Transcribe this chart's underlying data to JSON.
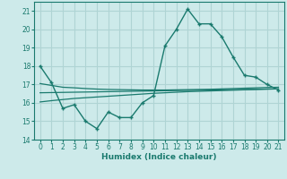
{
  "xlabel": "Humidex (Indice chaleur)",
  "x": [
    0,
    1,
    2,
    3,
    4,
    5,
    6,
    7,
    8,
    9,
    10,
    11,
    12,
    13,
    14,
    15,
    16,
    17,
    18,
    19,
    20,
    21
  ],
  "humidex": [
    18.0,
    17.1,
    15.7,
    15.9,
    15.0,
    14.6,
    15.5,
    15.2,
    15.2,
    16.0,
    16.4,
    19.1,
    20.0,
    21.1,
    20.3,
    20.3,
    19.6,
    18.5,
    17.5,
    17.4,
    17.0,
    16.7
  ],
  "line1": [
    17.05,
    16.95,
    16.85,
    16.82,
    16.78,
    16.75,
    16.73,
    16.72,
    16.71,
    16.7,
    16.7,
    16.7,
    16.71,
    16.72,
    16.73,
    16.74,
    16.76,
    16.78,
    16.8,
    16.82,
    16.84,
    16.85
  ],
  "line2": [
    16.55,
    16.56,
    16.57,
    16.58,
    16.59,
    16.6,
    16.61,
    16.62,
    16.63,
    16.64,
    16.65,
    16.66,
    16.67,
    16.68,
    16.69,
    16.7,
    16.71,
    16.72,
    16.73,
    16.74,
    16.75,
    16.76
  ],
  "line3": [
    16.05,
    16.12,
    16.18,
    16.24,
    16.28,
    16.32,
    16.36,
    16.4,
    16.44,
    16.48,
    16.52,
    16.55,
    16.58,
    16.61,
    16.63,
    16.65,
    16.67,
    16.69,
    16.71,
    16.73,
    16.75,
    16.76
  ],
  "line_color": "#1a7a6e",
  "bg_color": "#cdeaea",
  "grid_color": "#afd4d4",
  "ylim": [
    14,
    21.5
  ],
  "yticks": [
    14,
    15,
    16,
    17,
    18,
    19,
    20,
    21
  ],
  "xlim": [
    -0.5,
    21.5
  ],
  "xticks": [
    0,
    1,
    2,
    3,
    4,
    5,
    6,
    7,
    8,
    9,
    10,
    11,
    12,
    13,
    14,
    15,
    16,
    17,
    18,
    19,
    20,
    21
  ]
}
